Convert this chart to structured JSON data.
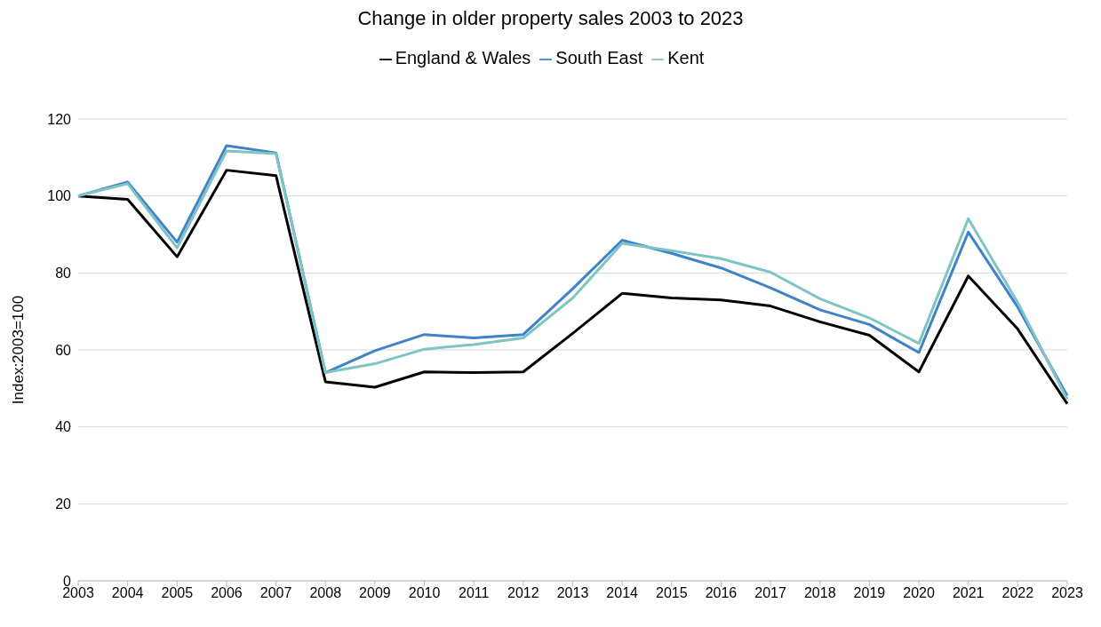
{
  "chart_data": {
    "type": "line",
    "title": "Change in older property sales 2003 to 2023",
    "ylabel": "Index:2003=100",
    "categories": [
      "2003",
      "2004",
      "2005",
      "2006",
      "2007",
      "2008",
      "2009",
      "2010",
      "2011",
      "2012",
      "2013",
      "2014",
      "2015",
      "2016",
      "2017",
      "2018",
      "2019",
      "2020",
      "2021",
      "2022",
      "2023"
    ],
    "series": [
      {
        "name": "England & Wales",
        "color": "#000000",
        "values": [
          100,
          99.1,
          84.2,
          106.7,
          105.3,
          51.7,
          50.3,
          54.3,
          54.1,
          54.3,
          64.3,
          74.7,
          73.5,
          73.0,
          71.4,
          67.3,
          63.8,
          54.3,
          79.2,
          65.4,
          46.0
        ]
      },
      {
        "name": "South East",
        "color": "#3f82c8",
        "values": [
          100,
          103.6,
          88.0,
          113.1,
          111.2,
          54.1,
          59.8,
          64.0,
          63.1,
          64.0,
          75.9,
          88.5,
          85.1,
          81.3,
          76.1,
          70.4,
          66.6,
          59.3,
          90.6,
          71.1,
          48.1
        ]
      },
      {
        "name": "Kent",
        "color": "#7fc4c4",
        "values": [
          100,
          103.2,
          86.5,
          111.7,
          111.0,
          54.1,
          56.4,
          60.2,
          61.4,
          63.1,
          73.5,
          87.7,
          85.8,
          83.7,
          80.2,
          73.3,
          68.3,
          61.7,
          94.1,
          72.3,
          47.2
        ]
      }
    ],
    "ylim": [
      0,
      120
    ],
    "yticks": [
      0,
      20,
      40,
      60,
      80,
      100,
      120
    ],
    "grid": "y",
    "legend": "top",
    "marker": "none",
    "line_style": "solid"
  }
}
